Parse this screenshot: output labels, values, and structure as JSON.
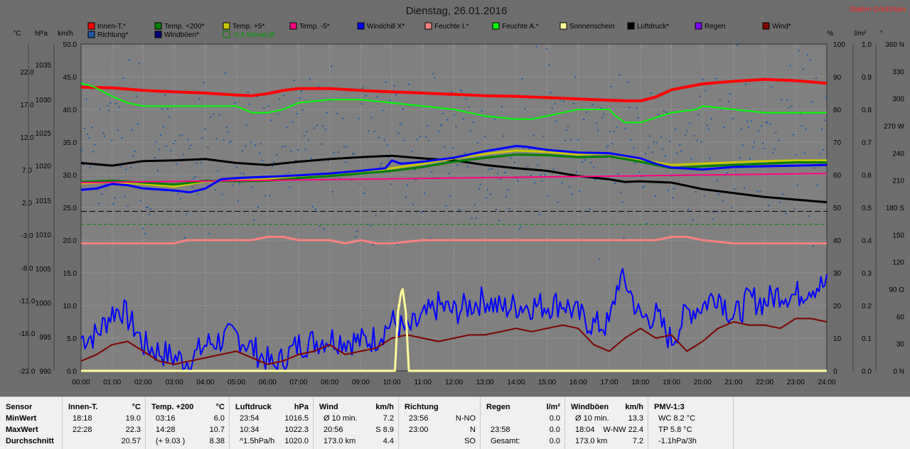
{
  "chart_data": {
    "type": "line",
    "title": "Dienstag, 26.01.2016",
    "station": "Station Göritzhain",
    "axes": {
      "left": [
        {
          "unit": "°C",
          "ticks": [
            "22.0",
            "17.0",
            "12.0",
            "7.0",
            "2.0",
            "-3.0",
            "-8.0",
            "-13.0",
            "-18.0",
            "-23.0"
          ]
        },
        {
          "unit": "hPa",
          "ticks": [
            "1035",
            "1030",
            "1025",
            "1020",
            "1015",
            "1010",
            "1005",
            "1000",
            "995",
            "990"
          ]
        },
        {
          "unit": "km/h",
          "ticks": [
            "50.0",
            "45.0",
            "40.0",
            "35.0",
            "30.0",
            "25.0",
            "20.0",
            "15.0",
            "10.0",
            "5.0",
            "0.0"
          ]
        }
      ],
      "right": [
        {
          "unit": "%",
          "ticks": [
            "100",
            "90",
            "80",
            "70",
            "60",
            "50",
            "40",
            "30",
            "20",
            "10",
            "0"
          ]
        },
        {
          "unit": "l/m²",
          "ticks": [
            "1.0",
            "0.9",
            "0.8",
            "0.7",
            "0.6",
            "0.5",
            "0.4",
            "0.3",
            "0.2",
            "0.1",
            "0.0"
          ]
        },
        {
          "unit": "°",
          "ticks": [
            "360 N",
            "330",
            "300",
            "270 W",
            "240",
            "210",
            "180 S",
            "150",
            "120",
            "90 O",
            "60",
            "30",
            "0 N"
          ]
        }
      ],
      "x_ticks": [
        "00:00",
        "01:00",
        "02:00",
        "03:00",
        "04:00",
        "05:00",
        "06:00",
        "07:00",
        "08:00",
        "09:00",
        "10:00",
        "11:00",
        "12:00",
        "13:00",
        "14:00",
        "15:00",
        "16:00",
        "17:00",
        "18:00",
        "19:00",
        "20:00",
        "21:00",
        "22:00",
        "23:00",
        "24:00"
      ]
    },
    "legend": [
      {
        "name": "Innen-T.*",
        "color": "#ff0000"
      },
      {
        "name": "Temp. +200*",
        "color": "#008000"
      },
      {
        "name": "Temp. +5*",
        "color": "#c8c800"
      },
      {
        "name": "Temp. -5*",
        "color": "#ff0080"
      },
      {
        "name": "Windchill X*",
        "color": "#0000ff"
      },
      {
        "name": "Feuchte I.*",
        "color": "#ff8080"
      },
      {
        "name": "Feuchte A.*",
        "color": "#00ff00"
      },
      {
        "name": "Sonnenschein",
        "color": "#ffff99"
      },
      {
        "name": "Luftdruck*",
        "color": "#000000"
      },
      {
        "name": "Regen",
        "color": "#8000ff"
      },
      {
        "name": "Wind*",
        "color": "#800000"
      },
      {
        "name": "Richtung*",
        "color": "#1e5aa0"
      },
      {
        "name": "Windböen*",
        "color": "#000080"
      },
      {
        "name": "-0.6 Monat-Ø",
        "color": "#008000"
      }
    ],
    "series": [
      {
        "name": "Innen-T.*",
        "color": "#ff0000",
        "width": 4,
        "axis": "temp",
        "x": [
          0,
          1,
          2,
          3,
          4,
          5,
          5.5,
          6,
          6.5,
          7,
          8,
          9,
          10,
          11,
          12,
          13,
          14,
          15,
          16,
          17,
          17.6,
          18,
          18.5,
          19,
          20,
          21,
          22,
          23,
          24
        ],
        "y": [
          20.4,
          20.3,
          19.9,
          19.7,
          19.5,
          19.2,
          19.1,
          19.4,
          19.9,
          20.2,
          20.2,
          19.9,
          19.7,
          19.5,
          19.3,
          19.1,
          19.0,
          18.8,
          18.6,
          18.4,
          18.3,
          18.3,
          18.9,
          20.0,
          20.9,
          21.3,
          21.6,
          21.4,
          21.0
        ]
      },
      {
        "name": "Feuchte A.*",
        "color": "#00ff00",
        "width": 2,
        "axis": "pct",
        "x": [
          0,
          0.4,
          1,
          1.5,
          2,
          3,
          4,
          5,
          5.5,
          6,
          6.5,
          7,
          8,
          9,
          10,
          11,
          12,
          12.5,
          13,
          14,
          14.5,
          15,
          16,
          16.5,
          17,
          17.2,
          17.5,
          18,
          19,
          19.8,
          20,
          21,
          22,
          23,
          24
        ],
        "y": [
          88,
          87,
          84,
          82,
          81,
          81,
          81,
          81,
          79,
          79,
          80,
          82,
          83,
          83,
          82,
          81,
          80,
          79,
          78,
          77,
          77,
          78,
          80,
          80,
          80,
          78,
          76,
          76,
          79,
          80,
          81,
          80,
          79,
          79,
          79
        ]
      },
      {
        "name": "Luftdruck*",
        "color": "#000000",
        "width": 3,
        "axis": "hPa",
        "x": [
          0,
          1,
          2,
          3,
          4,
          5,
          6,
          7,
          8,
          9,
          10,
          11,
          12,
          13,
          14,
          15,
          16,
          17,
          17.5,
          18,
          19,
          20,
          21,
          22,
          23,
          24
        ],
        "y": [
          1021.8,
          1021.4,
          1022.1,
          1022.2,
          1022.4,
          1021.8,
          1021.5,
          1022.0,
          1022.4,
          1022.7,
          1022.9,
          1022.5,
          1022.2,
          1021.5,
          1021.0,
          1020.6,
          1019.8,
          1019.3,
          1018.9,
          1019.0,
          1018.8,
          1017.8,
          1017.2,
          1016.6,
          1016.2,
          1015.8
        ]
      },
      {
        "name": "Temp. +5*",
        "color": "#c8c800",
        "width": 3,
        "axis": "temp",
        "x": [
          0,
          1,
          2,
          3,
          4,
          5,
          6,
          7,
          8,
          9,
          10,
          11,
          12,
          13,
          14,
          15,
          16,
          17,
          18,
          19,
          20,
          21,
          22,
          23,
          24
        ],
        "y": [
          5.7,
          5.9,
          5.6,
          5.2,
          6.0,
          6.1,
          6.3,
          6.7,
          7.0,
          7.4,
          8.0,
          8.7,
          9.5,
          10.2,
          10.7,
          10.5,
          10.1,
          10.3,
          9.3,
          8.5,
          8.7,
          8.9,
          9.1,
          9.2,
          9.2
        ]
      },
      {
        "name": "Temp. +200*",
        "color": "#008000",
        "width": 3,
        "axis": "temp",
        "x": [
          0,
          1,
          2,
          3,
          4,
          5,
          6,
          7,
          8,
          9,
          10,
          11,
          12,
          13,
          14,
          15,
          16,
          17,
          18,
          19,
          20,
          21,
          22,
          23,
          24
        ],
        "y": [
          5.9,
          6.1,
          5.8,
          5.5,
          6.1,
          6.0,
          6.1,
          6.5,
          6.8,
          7.2,
          7.6,
          8.2,
          9.0,
          9.6,
          10.1,
          10.0,
          9.7,
          9.8,
          9.0,
          8.0,
          8.3,
          8.5,
          8.7,
          8.9,
          8.9
        ]
      },
      {
        "name": "Temp. -5*",
        "color": "#ff0080",
        "width": 2,
        "axis": "temp",
        "x": [
          0,
          24
        ],
        "y": [
          5.8,
          7.2
        ]
      },
      {
        "name": "Windchill X*",
        "color": "#0000ff",
        "width": 3,
        "axis": "temp",
        "x": [
          0,
          0.5,
          1,
          1.5,
          2,
          3,
          3.5,
          4,
          4.5,
          5,
          6,
          7,
          8,
          9,
          9.8,
          10,
          10.3,
          10.6,
          11,
          12,
          13,
          14,
          14.3,
          15,
          16,
          17,
          17.5,
          18,
          18.5,
          19,
          20,
          21,
          22,
          23,
          24
        ],
        "y": [
          4.7,
          4.9,
          5.6,
          5.4,
          4.9,
          4.6,
          4.3,
          4.9,
          6.3,
          6.5,
          6.7,
          6.9,
          7.2,
          7.6,
          8.0,
          9.2,
          8.7,
          8.8,
          9.0,
          9.6,
          10.6,
          11.4,
          11.3,
          10.8,
          10.4,
          10.3,
          9.9,
          9.5,
          8.7,
          8.1,
          7.8,
          8.2,
          8.3,
          8.4,
          8.5
        ]
      },
      {
        "name": "Feuchte I.*",
        "color": "#ff8080",
        "width": 3,
        "axis": "pct",
        "x": [
          0,
          1,
          2,
          3,
          3.4,
          4,
          5,
          5.5,
          6,
          6.5,
          7,
          8,
          8.5,
          9,
          9.5,
          10,
          11,
          12,
          13,
          14,
          15,
          16,
          17,
          18,
          18.5,
          19,
          19.5,
          20,
          21,
          22,
          23,
          24
        ],
        "y": [
          39,
          39,
          39,
          39,
          40,
          40,
          40,
          40,
          41,
          41,
          40,
          40,
          39,
          40,
          39,
          39,
          40,
          40,
          40,
          40,
          40,
          40,
          40,
          40,
          40,
          41,
          41,
          40,
          39,
          39,
          39,
          39
        ]
      },
      {
        "name": "Windböen*",
        "color": "#0000ff",
        "width": 2,
        "axis": "kmh",
        "noisy": true,
        "seed": 7,
        "x": [
          0,
          0.5,
          1,
          1.3,
          1.8,
          2,
          3,
          3.5,
          4,
          5,
          5.5,
          6,
          6.2,
          7,
          8,
          9,
          9.5,
          10,
          10.5,
          11,
          11.5,
          12,
          13,
          13.5,
          14,
          15,
          15.5,
          16,
          16.5,
          17,
          17.3,
          17.6,
          18,
          18.5,
          19,
          19.5,
          20,
          20.5,
          21,
          21.5,
          22,
          22.5,
          23,
          23.5,
          24
        ],
        "y": [
          5,
          5.5,
          9,
          9.5,
          6,
          4,
          2,
          1.5,
          4,
          5.5,
          3.5,
          1.5,
          0.5,
          4,
          5,
          4.5,
          5,
          7.5,
          6,
          8,
          10,
          9,
          11,
          9.5,
          10,
          10,
          10.5,
          8.5,
          7,
          7,
          14,
          13,
          8,
          8.5,
          4.5,
          9,
          10,
          12,
          8,
          11,
          10.5,
          12,
          11.5,
          13,
          13
        ]
      },
      {
        "name": "Wind*",
        "color": "#800000",
        "width": 2,
        "axis": "kmh",
        "x": [
          0,
          0.5,
          1,
          1.5,
          2,
          2.5,
          3,
          3.5,
          4,
          4.5,
          5,
          5.5,
          6,
          6.5,
          7,
          7.5,
          8,
          8.5,
          9,
          9.5,
          10,
          10.5,
          11,
          11.5,
          12,
          12.5,
          13,
          13.5,
          14,
          14.5,
          15,
          15.5,
          16,
          16.5,
          17,
          17.5,
          18,
          18.5,
          19,
          19.5,
          20,
          20.5,
          21,
          21.5,
          22,
          22.5,
          23,
          23.5,
          24
        ],
        "y": [
          1.5,
          2.5,
          4.0,
          4.5,
          3.0,
          1.5,
          1.0,
          1.5,
          2.0,
          2.5,
          3.0,
          2.0,
          1.0,
          1.5,
          2.5,
          3.0,
          4.0,
          2.5,
          3.0,
          3.5,
          5.0,
          5.5,
          5.0,
          4.5,
          5.0,
          5.5,
          5.5,
          6.0,
          6.5,
          6.0,
          6.5,
          7.0,
          6.5,
          4.0,
          3.0,
          5.0,
          6.5,
          5.0,
          5.5,
          3.0,
          4.5,
          6.5,
          7.5,
          7.0,
          7.0,
          6.5,
          8.0,
          8.0,
          7.5
        ]
      },
      {
        "name": "Sonnenschein",
        "color": "#ffff99",
        "width": 3,
        "axis": "kmh",
        "x": [
          0,
          10.1,
          10.2,
          10.3,
          10.35,
          10.45,
          10.55,
          24
        ],
        "y": [
          0,
          0,
          9,
          12,
          12.5,
          9,
          0,
          0
        ]
      }
    ],
    "richtung_scatter": {
      "name": "Richtung*",
      "color": "#1e5aa0",
      "axis": "deg",
      "mean": 245,
      "spread": 60,
      "count": 520
    },
    "ref_lines": [
      {
        "axis": "temp",
        "value": -0.6,
        "color": "#008000",
        "dash": "5,3"
      },
      {
        "axis": "temp",
        "value": 1.4,
        "color": "#000000",
        "dash": "8,4"
      }
    ]
  },
  "table": {
    "columns": [
      {
        "header": "Sensor",
        "unit": "",
        "rows": [
          [
            "MinWert",
            ""
          ],
          [
            "MaxWert",
            ""
          ],
          [
            "Durchschnitt",
            ""
          ]
        ]
      },
      {
        "header": "Innen-T.",
        "unit": "°C",
        "rows": [
          [
            "18:18",
            "19.0"
          ],
          [
            "22:28",
            "22.3"
          ],
          [
            "",
            "20.57"
          ]
        ]
      },
      {
        "header": "Temp. +200",
        "unit": "°C",
        "rows": [
          [
            "03:16",
            "6.0"
          ],
          [
            "14:28",
            "10.7"
          ],
          [
            "(+ 9.03 )",
            "8.38"
          ]
        ]
      },
      {
        "header": "Luftdruck",
        "unit": "hPa",
        "rows": [
          [
            "23:54",
            "1016.5"
          ],
          [
            "10:34",
            "1022.3"
          ],
          [
            "^1.5hPa/h",
            "1020.0"
          ]
        ]
      },
      {
        "header": "Wind",
        "unit": "km/h",
        "rows": [
          [
            "Ø 10 min.",
            "7.2"
          ],
          [
            "20:56",
            "S 8.9"
          ],
          [
            "173.0 km",
            "4.4"
          ]
        ]
      },
      {
        "header": "Richtung",
        "unit": "",
        "rows": [
          [
            "23:56",
            "N-NO"
          ],
          [
            "23:00",
            "N"
          ],
          [
            "",
            "SO"
          ]
        ]
      },
      {
        "header": "Regen",
        "unit": "l/m²",
        "rows": [
          [
            "",
            "0.0"
          ],
          [
            "23:58",
            "0.0"
          ],
          [
            "Gesamt:",
            "0.0"
          ]
        ]
      },
      {
        "header": "Windböen",
        "unit": "km/h",
        "rows": [
          [
            "Ø 10 min.",
            "13.3"
          ],
          [
            "18:04",
            "W-NW 22.4"
          ],
          [
            "173.0 km",
            "7.2"
          ]
        ]
      },
      {
        "header": "PMV-1:3",
        "unit": "",
        "rows": [
          [
            "WC 8.2 °C",
            ""
          ],
          [
            "TP 5.8 °C",
            ""
          ],
          [
            "-1.1hPa/3h",
            ""
          ]
        ]
      }
    ]
  }
}
